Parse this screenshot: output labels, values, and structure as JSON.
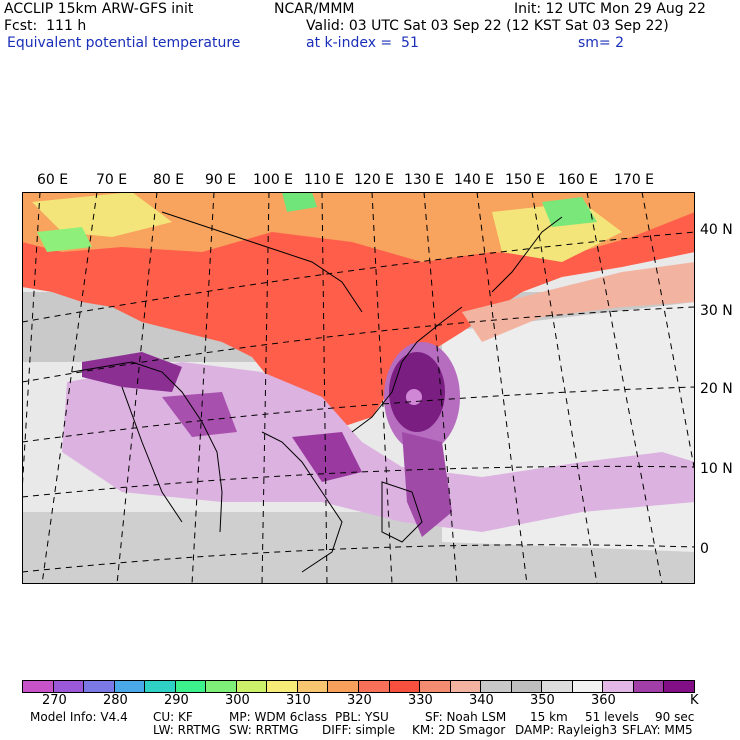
{
  "header": {
    "line1_left": "ACCLIP 15km ARW-GFS init",
    "line1_center": "NCAR/MMM",
    "line1_right": "Init: 12 UTC Mon 29 Aug 22",
    "line2_left": "Fcst:  111 h",
    "line2_right": "Valid: 03 UTC Sat 03 Sep 22 (12 KST Sat 03 Sep 22)",
    "line3_left": "Equivalent potential temperature",
    "line3_mid": "at k-index =  51",
    "line3_right": "sm= 2"
  },
  "map": {
    "lon_labels": [
      "60 E",
      "70 E",
      "80 E",
      "90 E",
      "100 E",
      "110 E",
      "120 E",
      "130 E",
      "140 E",
      "150 E",
      "160 E",
      "170 E"
    ],
    "lat_labels": [
      "40 N",
      "30 N",
      "20 N",
      "10 N",
      "0"
    ],
    "colors": {
      "ocean": "#e6e6e6",
      "warm": "#ff5f4a",
      "purple": "#9a3aa0",
      "lavender": "#d8a8dc"
    }
  },
  "colorbar": {
    "unit": "K",
    "ticks": [
      "270",
      "280",
      "290",
      "300",
      "310",
      "320",
      "330",
      "340",
      "350",
      "360"
    ],
    "colors": [
      "#c853c8",
      "#9b59d9",
      "#7b79e6",
      "#4aa8e8",
      "#2fd1c4",
      "#3cf08c",
      "#7ef07a",
      "#cdf06a",
      "#f7ec78",
      "#f8c670",
      "#f7a05c",
      "#f7705a",
      "#f8503e",
      "#f48c72",
      "#f2b3a0",
      "#c8c8c8",
      "#bebebe",
      "#dddddd",
      "#f2f2f2",
      "#e2b6e6",
      "#a13ea8",
      "#820f86"
    ]
  },
  "footer": {
    "line1": [
      "Model Info: V4.4",
      "CU: KF",
      "MP: WDM 6class",
      "PBL: YSU",
      "SF: Noah LSM",
      "15 km",
      "51 levels",
      "90 sec"
    ],
    "line2": [
      "LW: RRTMG",
      "SW: RRTMG",
      "DIFF: simple",
      "KM: 2D Smagor",
      "DAMP: Rayleigh3",
      "SFLAY: MM5"
    ]
  }
}
